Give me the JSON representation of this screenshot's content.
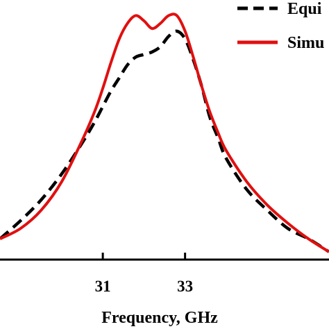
{
  "chart_data": {
    "type": "line",
    "xlabel": "Frequency, GHz",
    "ylabel": "",
    "title": "",
    "xlim": [
      28.5,
      36.5
    ],
    "ylim": [
      0,
      1
    ],
    "x_ticks": [
      {
        "value": 31,
        "label": "31"
      },
      {
        "value": 33,
        "label": "33"
      }
    ],
    "grid": false,
    "legend_position": "top-right",
    "series": [
      {
        "name": "Equi",
        "style": "dashed",
        "color": "#000000",
        "x": [
          28.5,
          29.0,
          29.5,
          30.0,
          30.5,
          30.8,
          31.0,
          31.2,
          31.4,
          31.6,
          31.8,
          32.0,
          32.2,
          32.4,
          32.6,
          32.8,
          33.0,
          33.2,
          33.4,
          33.6,
          33.8,
          34.0,
          34.5,
          35.0,
          35.5,
          36.0,
          36.5
        ],
        "y": [
          0.08,
          0.15,
          0.23,
          0.33,
          0.45,
          0.53,
          0.59,
          0.65,
          0.7,
          0.75,
          0.78,
          0.79,
          0.8,
          0.82,
          0.86,
          0.88,
          0.85,
          0.77,
          0.67,
          0.55,
          0.47,
          0.39,
          0.27,
          0.19,
          0.12,
          0.08,
          0.03
        ]
      },
      {
        "name": "Simu",
        "style": "solid",
        "color": "#e01010",
        "x": [
          28.5,
          29.0,
          29.5,
          30.0,
          30.5,
          30.8,
          31.0,
          31.2,
          31.4,
          31.6,
          31.8,
          32.0,
          32.2,
          32.4,
          32.6,
          32.8,
          33.0,
          33.2,
          33.4,
          33.6,
          33.8,
          34.0,
          34.5,
          35.0,
          35.5,
          36.0,
          36.5
        ],
        "y": [
          0.08,
          0.12,
          0.19,
          0.3,
          0.46,
          0.57,
          0.66,
          0.76,
          0.85,
          0.91,
          0.94,
          0.92,
          0.89,
          0.91,
          0.94,
          0.94,
          0.88,
          0.78,
          0.67,
          0.57,
          0.49,
          0.42,
          0.3,
          0.21,
          0.14,
          0.08,
          0.03
        ]
      }
    ]
  }
}
